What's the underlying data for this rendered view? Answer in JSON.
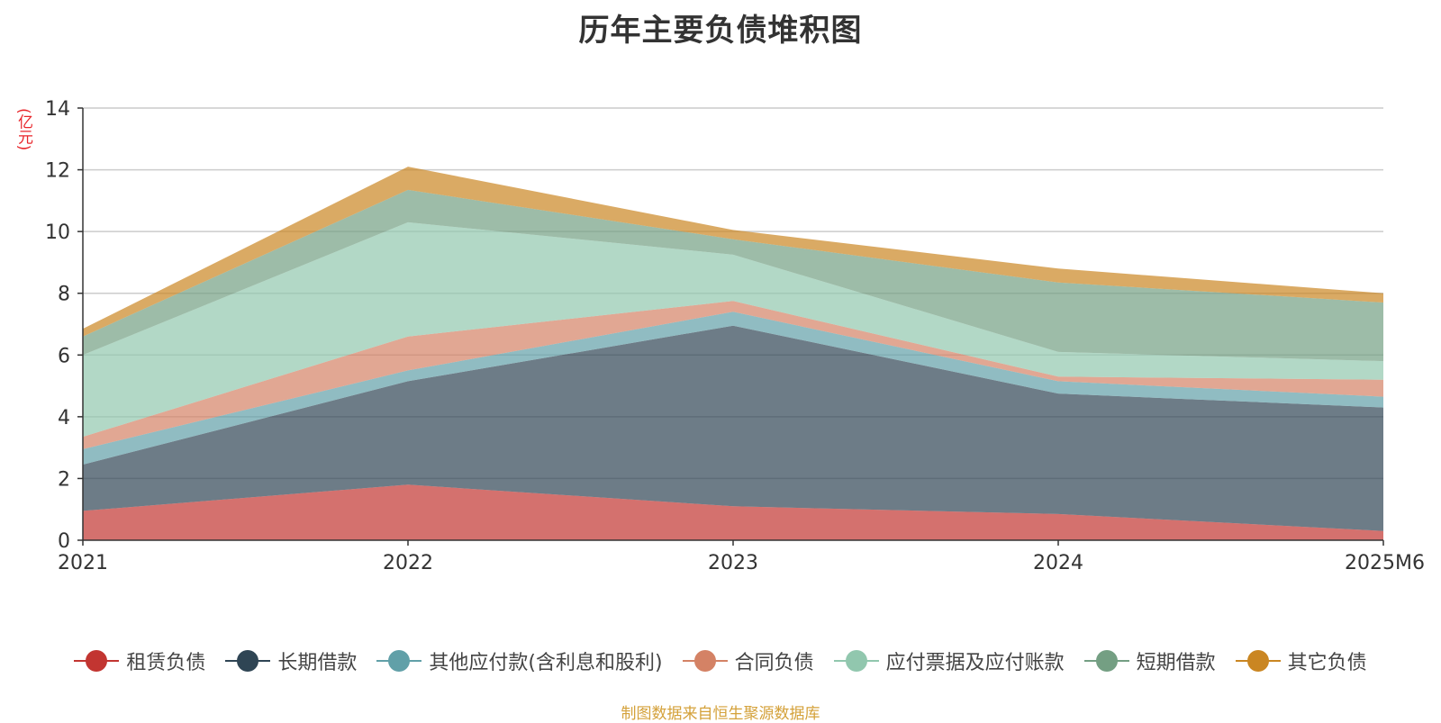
{
  "chart_data": {
    "type": "area",
    "stacked": true,
    "title": "历年主要负债堆积图",
    "unit_label": "(亿元)",
    "x": [
      "2021",
      "2022",
      "2023",
      "2024",
      "2025M6"
    ],
    "ylim": [
      0,
      14
    ],
    "yticks": [
      0,
      2,
      4,
      6,
      8,
      10,
      12,
      14
    ],
    "grid": true,
    "legend_position": "bottom",
    "series": [
      {
        "name": "租赁负债",
        "color": "#c23531",
        "values": [
          0.95,
          1.8,
          1.1,
          0.85,
          0.3
        ]
      },
      {
        "name": "长期借款",
        "color": "#2f4554",
        "values": [
          1.5,
          3.35,
          5.85,
          3.9,
          4.0
        ]
      },
      {
        "name": "其他应付款(含利息和股利)",
        "color": "#61a0a8",
        "values": [
          0.5,
          0.35,
          0.45,
          0.4,
          0.35
        ]
      },
      {
        "name": "合同负债",
        "color": "#d48265",
        "values": [
          0.4,
          1.1,
          0.35,
          0.15,
          0.55
        ]
      },
      {
        "name": "应付票据及应付账款",
        "color": "#91c7ae",
        "values": [
          2.65,
          3.7,
          1.5,
          0.8,
          0.6
        ]
      },
      {
        "name": "短期借款",
        "color": "#749f83",
        "values": [
          0.6,
          1.05,
          0.5,
          2.25,
          1.9
        ]
      },
      {
        "name": "其它负债",
        "color": "#ca8622",
        "values": [
          0.25,
          0.75,
          0.3,
          0.45,
          0.3
        ]
      }
    ]
  },
  "source_note": "制图数据来自恒生聚源数据库"
}
